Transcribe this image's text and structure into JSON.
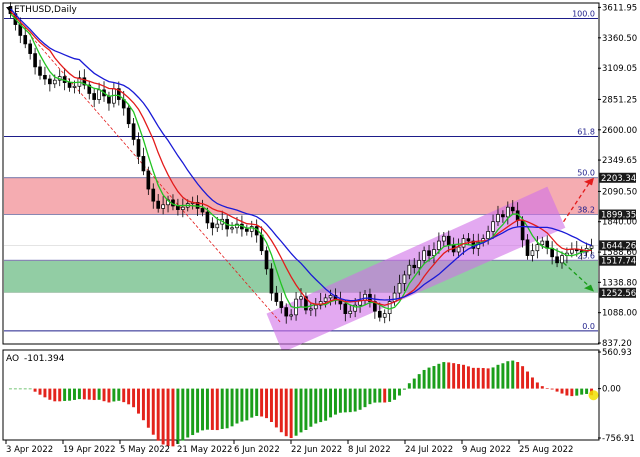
{
  "chart_data": [
    {
      "type": "candlestick",
      "title": "ETHUSD,Daily",
      "ylim": [
        837.2,
        3640
      ],
      "yticks": [
        "3611.95",
        "3360.50",
        "3109.05",
        "2851.25",
        "2600.00",
        "2349.65",
        "2090.50",
        "1840.00",
        "1588.60",
        "1338.80",
        "1088.00",
        "837.20"
      ],
      "xticks": [
        "3 Apr 2022",
        "19 Apr 2022",
        "5 May 2022",
        "21 May 2022",
        "6 Jun 2022",
        "22 Jun 2022",
        "8 Jul 2022",
        "24 Jul 2022",
        "9 Aug 2022",
        "25 Aug 2022"
      ],
      "close": [
        3560,
        3470,
        3380,
        3310,
        3230,
        3120,
        3050,
        3020,
        2980,
        3010,
        3040,
        2990,
        2950,
        2960,
        3030,
        2970,
        2900,
        2850,
        2930,
        2880,
        2820,
        2940,
        2850,
        2780,
        2650,
        2520,
        2380,
        2260,
        2110,
        2010,
        1950,
        1980,
        2020,
        1970,
        1940,
        1960,
        1990,
        2000,
        1950,
        1920,
        1830,
        1790,
        1820,
        1860,
        1780,
        1790,
        1820,
        1780,
        1760,
        1800,
        1730,
        1600,
        1450,
        1250,
        1180,
        1130,
        1060,
        1070,
        1200,
        1220,
        1110,
        1120,
        1150,
        1180,
        1210,
        1230,
        1190,
        1160,
        1080,
        1100,
        1150,
        1190,
        1240,
        1180,
        1100,
        1050,
        1080,
        1180,
        1250,
        1330,
        1400,
        1480,
        1460,
        1520,
        1600,
        1560,
        1610,
        1680,
        1720,
        1650,
        1590,
        1630,
        1700,
        1680,
        1620,
        1670,
        1700,
        1760,
        1840,
        1900,
        1880,
        1960,
        1930,
        1850,
        1690,
        1560,
        1600,
        1650,
        1680,
        1620,
        1550,
        1500,
        1560,
        1580,
        1610,
        1600,
        1590,
        1620,
        1640
      ],
      "price_levels": [
        {
          "label": "2203.34",
          "price": 2203.34,
          "color": "#1a1a1a"
        },
        {
          "label": "1899.35",
          "price": 1899.35,
          "color": "#1a1a1a"
        },
        {
          "label": "1644.26",
          "price": 1644.26,
          "color": "#1a1a1a"
        },
        {
          "label": "1517.74",
          "price": 1517.74,
          "color": "#1a1a1a"
        },
        {
          "label": "1252.56",
          "price": 1252.56,
          "color": "#1a1a1a"
        }
      ],
      "fibonacci": [
        {
          "label": "100.0",
          "price": 3520
        },
        {
          "label": "61.8",
          "price": 2545
        },
        {
          "label": "50.0",
          "price": 2205
        },
        {
          "label": "38.2",
          "price": 1900
        },
        {
          "label": "23.6",
          "price": 1520
        },
        {
          "label": "0.0",
          "price": 937
        }
      ],
      "zones": [
        {
          "from": 1899.35,
          "to": 2203.34,
          "color": "#f4a3a8"
        },
        {
          "from": 1252.56,
          "to": 1517.74,
          "color": "#86c89a"
        }
      ],
      "series": [
        {
          "period": 5,
          "color": "#22c322"
        },
        {
          "period": 9,
          "color": "#e31b1b"
        },
        {
          "period": 15,
          "color": "#1a1ad6"
        }
      ],
      "channel_color": "#d070e8",
      "colors": {
        "bull": "#000000",
        "bear": "#000000"
      }
    },
    {
      "type": "bar",
      "title": "AO",
      "value_label": "-101.394",
      "ylim": [
        -756.91,
        560.93
      ],
      "yticks": [
        "560.93",
        "0.00",
        "-756.91"
      ],
      "colors": {
        "up": "#1a9e1a",
        "down": "#e3231b",
        "marker": "#f0e000"
      }
    }
  ]
}
